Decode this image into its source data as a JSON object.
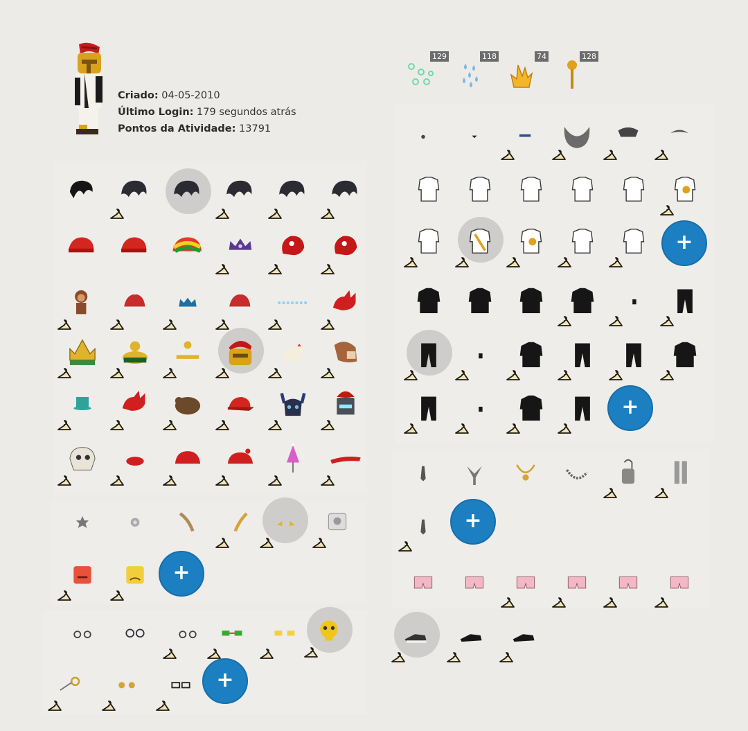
{
  "profile": {
    "created_label": "Criado:",
    "created_value": "04-05-2010",
    "last_login_label": "Último Login:",
    "last_login_value": "179 segundos atrás",
    "activity_label": "Pontos da Atividade:",
    "activity_value": "13791"
  },
  "currencies": [
    {
      "icon": "green-bubbles-icon",
      "count": "129",
      "color": "#6fd9a8"
    },
    {
      "icon": "blue-drops-icon",
      "count": "118",
      "color": "#7ab7e6"
    },
    {
      "icon": "gold-flame-icon",
      "count": "74",
      "color": "#f2b62a"
    },
    {
      "icon": "torch-icon",
      "count": "128",
      "color": "#e0a21c"
    }
  ],
  "plus_label": "+",
  "colors": {
    "accent": "#1c7fc1",
    "background": "#ecebe7",
    "selected": "#cfcdcb"
  }
}
